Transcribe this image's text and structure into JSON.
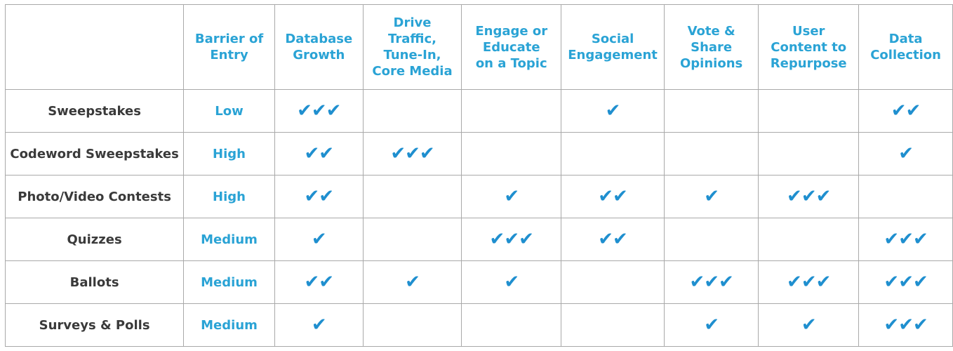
{
  "table": {
    "columns": [
      "",
      "Barrier of Entry",
      "Database Growth",
      "Drive Traffic, Tune-In, Core Media",
      "Engage or Educate on a Topic",
      "Social Engagement",
      "Vote & Share Opinions",
      "User Content to Repurpose",
      "Data Collection"
    ],
    "rows": [
      {
        "label": "Sweepstakes",
        "barrier": "Low",
        "checks": [
          "✔✔✔",
          "",
          "",
          "✔",
          "",
          "",
          "✔✔"
        ]
      },
      {
        "label": "Codeword Sweepstakes",
        "barrier": "High",
        "checks": [
          "✔✔",
          "✔✔✔",
          "",
          "",
          "",
          "",
          "✔"
        ]
      },
      {
        "label": "Photo/Video Contests",
        "barrier": "High",
        "checks": [
          "✔✔",
          "",
          "✔",
          "✔✔",
          "✔",
          "✔✔✔",
          ""
        ]
      },
      {
        "label": "Quizzes",
        "barrier": "Medium",
        "checks": [
          "✔",
          "",
          "✔✔✔",
          "✔✔",
          "",
          "",
          "✔✔✔"
        ]
      },
      {
        "label": "Ballots",
        "barrier": "Medium",
        "checks": [
          "✔✔",
          "✔",
          "✔",
          "",
          "✔✔✔",
          "✔✔✔",
          "✔✔✔"
        ]
      },
      {
        "label": "Surveys & Polls",
        "barrier": "Medium",
        "checks": [
          "✔",
          "",
          "",
          "",
          "✔",
          "✔",
          "✔✔✔"
        ]
      }
    ]
  },
  "colors": {
    "accent": "#2aa3d5",
    "check": "#1f8fcf",
    "border": "#a9a9a9",
    "label": "#3a3a3a"
  },
  "icons": {
    "check": "check-icon"
  }
}
